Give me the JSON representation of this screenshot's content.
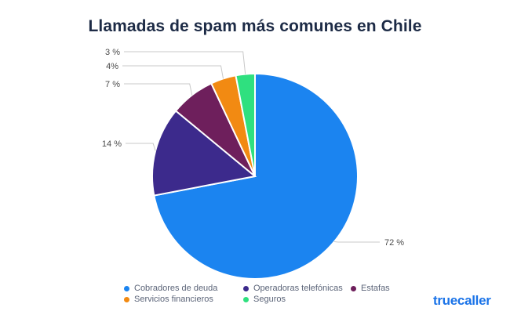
{
  "chart_data": {
    "type": "pie",
    "title": "Llamadas de spam más comunes en Chile",
    "categories": [
      "Cobradores de deuda",
      "Operadoras telefónicas",
      "Estafas",
      "Servicios financieros",
      "Seguros"
    ],
    "values": [
      72,
      14,
      7,
      4,
      3
    ],
    "labels": [
      "72 %",
      "14 %",
      "7 %",
      "4%",
      "3 %"
    ],
    "colors": [
      "#1b84f0",
      "#3c2a8c",
      "#6e1f5c",
      "#f28a12",
      "#2fe07f"
    ],
    "legend_position": "bottom"
  },
  "brand": {
    "name": "truecaller"
  }
}
